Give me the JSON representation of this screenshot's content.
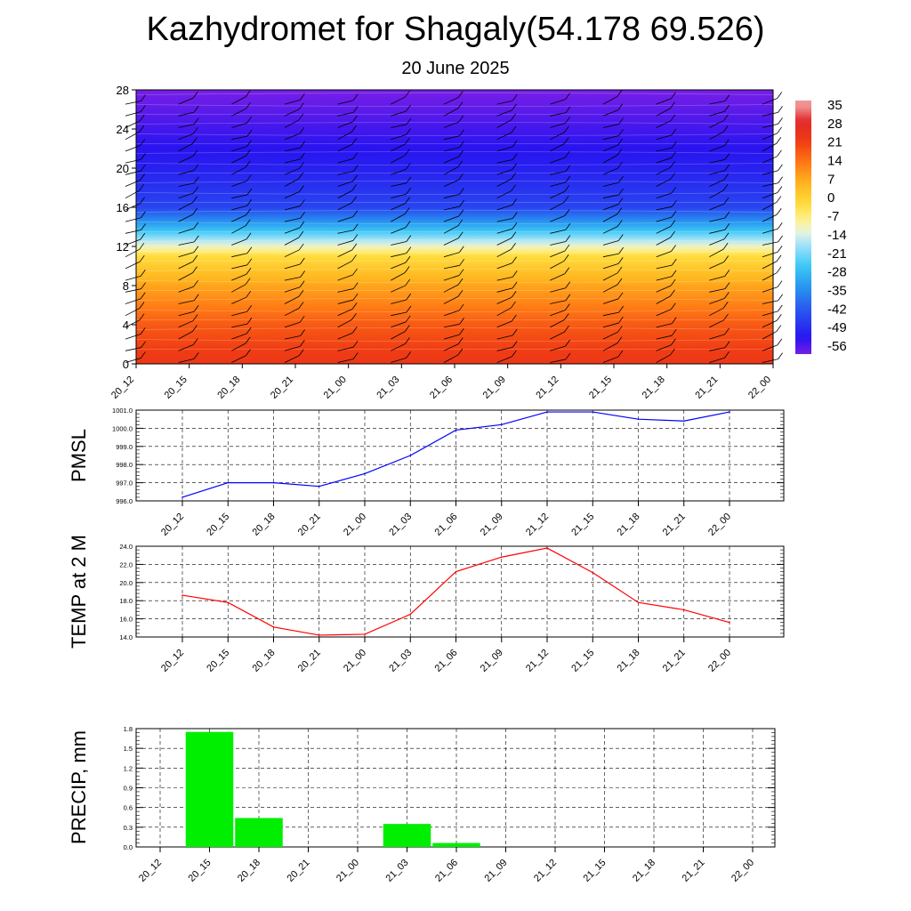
{
  "title": "Kazhydromet for Shagaly(54.178 69.526)",
  "subtitle": "20 June 2025",
  "colors": {
    "pmsl_line": "#0000ff",
    "temp_line": "#ff0000",
    "precip_bar": "#00ee00",
    "wind_barb": "#000000"
  },
  "chart_data": [
    {
      "type": "heatmap",
      "title": "",
      "x_ticks": [
        "20_12",
        "20_15",
        "20_18",
        "20_21",
        "21_00",
        "21_03",
        "21_06",
        "21_09",
        "21_12",
        "21_15",
        "21_18",
        "21_21",
        "22_00"
      ],
      "y_ticks": [
        "0",
        "4",
        "8",
        "12",
        "16",
        "20",
        "24",
        "28"
      ],
      "ylim": [
        0,
        28
      ],
      "colorbar_labels": [
        "35",
        "28",
        "21",
        "14",
        "7",
        "0",
        "-7",
        "-14",
        "-21",
        "-28",
        "-35",
        "-42",
        "-49",
        "-56"
      ],
      "colorbar_range": [
        -60,
        38
      ],
      "temperature_profile": [
        {
          "height": 0,
          "value": 24
        },
        {
          "height": 4,
          "value": 18
        },
        {
          "height": 8,
          "value": 8
        },
        {
          "height": 11,
          "value": -2
        },
        {
          "height": 12.5,
          "value": -16
        },
        {
          "height": 14,
          "value": -30
        },
        {
          "height": 16,
          "value": -46
        },
        {
          "height": 20,
          "value": -52
        },
        {
          "height": 24,
          "value": -56
        },
        {
          "height": 28,
          "value": -60
        }
      ],
      "wind_barbs": "shown"
    },
    {
      "type": "line",
      "ylabel": "PMSL",
      "x": [
        "20_12",
        "20_15",
        "20_18",
        "20_21",
        "21_00",
        "21_03",
        "21_06",
        "21_09",
        "21_12",
        "21_15",
        "21_18",
        "21_21",
        "22_00"
      ],
      "y_ticks": [
        "996.0",
        "997.0",
        "998.0",
        "999.0",
        "1000.0",
        "1001.0"
      ],
      "ylim": [
        996.0,
        1001.0
      ],
      "values": [
        996.2,
        997.0,
        997.0,
        996.8,
        997.5,
        998.5,
        999.9,
        1000.2,
        1000.9,
        1000.9,
        1000.5,
        1000.4,
        1000.9
      ],
      "grid": true
    },
    {
      "type": "line",
      "ylabel": "TEMP at 2 M",
      "x": [
        "20_12",
        "20_15",
        "20_18",
        "20_21",
        "21_00",
        "21_03",
        "21_06",
        "21_09",
        "21_12",
        "21_15",
        "21_18",
        "21_21",
        "22_00"
      ],
      "y_ticks": [
        "14.0",
        "16.0",
        "18.0",
        "20.0",
        "22.0",
        "24.0"
      ],
      "ylim": [
        14.0,
        24.0
      ],
      "values": [
        18.6,
        17.8,
        15.1,
        14.2,
        14.3,
        16.5,
        21.2,
        22.8,
        23.8,
        21.1,
        17.8,
        17.0,
        15.6
      ],
      "grid": true
    },
    {
      "type": "bar",
      "ylabel": "PRECIP, mm",
      "categories": [
        "20_12",
        "20_15",
        "20_18",
        "20_21",
        "21_00",
        "21_03",
        "21_06",
        "21_09",
        "21_12",
        "21_15",
        "21_18",
        "21_21",
        "22_00"
      ],
      "y_ticks": [
        "0.0",
        "0.3",
        "0.6",
        "0.9",
        "1.2",
        "1.5",
        "1.8"
      ],
      "ylim": [
        0,
        1.8
      ],
      "values": [
        0,
        1.75,
        0.44,
        0,
        0,
        0.35,
        0.06,
        0,
        0,
        0,
        0,
        0,
        0
      ],
      "grid": true
    }
  ]
}
